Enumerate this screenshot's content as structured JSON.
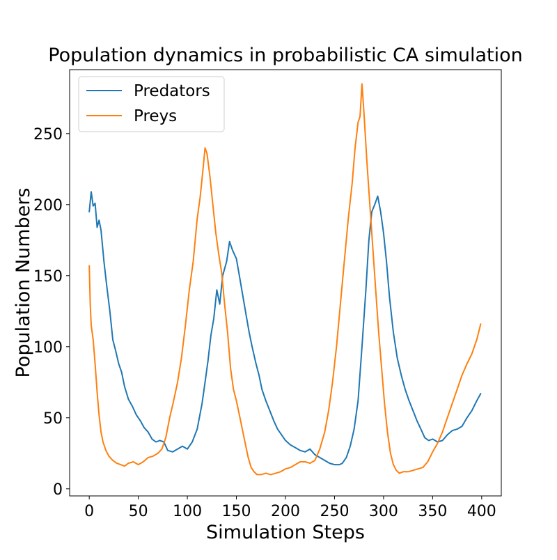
{
  "chart_data": {
    "type": "line",
    "title": "Population dynamics in probabilistic CA simulation",
    "xlabel": "Simulation Steps",
    "ylabel": "Population Numbers",
    "xlim": [
      -20,
      420
    ],
    "ylim": [
      -5,
      295
    ],
    "xticks": [
      0,
      50,
      100,
      150,
      200,
      250,
      300,
      350,
      400
    ],
    "yticks": [
      0,
      50,
      100,
      150,
      200,
      250
    ],
    "grid": false,
    "legend_position": "top-left",
    "series": [
      {
        "name": "Predators",
        "color": "#1f77b4",
        "points": [
          [
            0,
            195
          ],
          [
            2,
            209
          ],
          [
            4,
            199
          ],
          [
            6,
            201
          ],
          [
            8,
            184
          ],
          [
            10,
            189
          ],
          [
            12,
            182
          ],
          [
            15,
            160
          ],
          [
            18,
            142
          ],
          [
            21,
            125
          ],
          [
            24,
            105
          ],
          [
            27,
            97
          ],
          [
            30,
            88
          ],
          [
            33,
            82
          ],
          [
            36,
            72
          ],
          [
            40,
            63
          ],
          [
            44,
            58
          ],
          [
            48,
            52
          ],
          [
            52,
            48
          ],
          [
            56,
            43
          ],
          [
            60,
            40
          ],
          [
            64,
            35
          ],
          [
            68,
            33
          ],
          [
            72,
            34
          ],
          [
            76,
            33
          ],
          [
            80,
            27
          ],
          [
            85,
            26
          ],
          [
            90,
            28
          ],
          [
            95,
            30
          ],
          [
            100,
            28
          ],
          [
            105,
            33
          ],
          [
            110,
            42
          ],
          [
            115,
            60
          ],
          [
            118,
            75
          ],
          [
            121,
            90
          ],
          [
            124,
            108
          ],
          [
            127,
            120
          ],
          [
            130,
            140
          ],
          [
            133,
            130
          ],
          [
            136,
            150
          ],
          [
            140,
            160
          ],
          [
            143,
            174
          ],
          [
            146,
            168
          ],
          [
            150,
            162
          ],
          [
            153,
            150
          ],
          [
            156,
            138
          ],
          [
            160,
            122
          ],
          [
            163,
            110
          ],
          [
            166,
            100
          ],
          [
            170,
            88
          ],
          [
            173,
            80
          ],
          [
            176,
            70
          ],
          [
            180,
            62
          ],
          [
            184,
            55
          ],
          [
            188,
            48
          ],
          [
            192,
            42
          ],
          [
            196,
            38
          ],
          [
            200,
            34
          ],
          [
            205,
            31
          ],
          [
            210,
            29
          ],
          [
            215,
            27
          ],
          [
            220,
            26
          ],
          [
            225,
            28
          ],
          [
            230,
            24
          ],
          [
            235,
            22
          ],
          [
            240,
            20
          ],
          [
            245,
            18
          ],
          [
            250,
            17
          ],
          [
            255,
            17
          ],
          [
            258,
            18
          ],
          [
            262,
            22
          ],
          [
            266,
            30
          ],
          [
            270,
            42
          ],
          [
            274,
            62
          ],
          [
            278,
            100
          ],
          [
            282,
            140
          ],
          [
            285,
            175
          ],
          [
            288,
            195
          ],
          [
            291,
            200
          ],
          [
            294,
            206
          ],
          [
            297,
            195
          ],
          [
            300,
            180
          ],
          [
            303,
            160
          ],
          [
            306,
            135
          ],
          [
            310,
            110
          ],
          [
            314,
            92
          ],
          [
            318,
            80
          ],
          [
            322,
            70
          ],
          [
            326,
            62
          ],
          [
            330,
            55
          ],
          [
            334,
            48
          ],
          [
            338,
            42
          ],
          [
            342,
            36
          ],
          [
            346,
            34
          ],
          [
            350,
            35
          ],
          [
            355,
            33
          ],
          [
            360,
            34
          ],
          [
            365,
            38
          ],
          [
            370,
            41
          ],
          [
            375,
            42
          ],
          [
            380,
            44
          ],
          [
            385,
            50
          ],
          [
            390,
            55
          ],
          [
            395,
            62
          ],
          [
            399,
            67
          ]
        ]
      },
      {
        "name": "Preys",
        "color": "#ff7f0e",
        "points": [
          [
            0,
            157
          ],
          [
            1,
            130
          ],
          [
            2,
            115
          ],
          [
            4,
            105
          ],
          [
            6,
            88
          ],
          [
            8,
            68
          ],
          [
            10,
            52
          ],
          [
            12,
            40
          ],
          [
            14,
            33
          ],
          [
            17,
            27
          ],
          [
            20,
            23
          ],
          [
            24,
            20
          ],
          [
            28,
            18
          ],
          [
            32,
            17
          ],
          [
            36,
            16
          ],
          [
            40,
            18
          ],
          [
            45,
            19
          ],
          [
            50,
            17
          ],
          [
            55,
            19
          ],
          [
            60,
            22
          ],
          [
            65,
            23
          ],
          [
            70,
            25
          ],
          [
            74,
            28
          ],
          [
            78,
            36
          ],
          [
            82,
            50
          ],
          [
            86,
            62
          ],
          [
            90,
            75
          ],
          [
            94,
            92
          ],
          [
            98,
            115
          ],
          [
            102,
            140
          ],
          [
            106,
            160
          ],
          [
            110,
            190
          ],
          [
            113,
            205
          ],
          [
            116,
            225
          ],
          [
            118,
            240
          ],
          [
            120,
            236
          ],
          [
            123,
            220
          ],
          [
            126,
            200
          ],
          [
            129,
            180
          ],
          [
            132,
            165
          ],
          [
            135,
            152
          ],
          [
            138,
            130
          ],
          [
            141,
            110
          ],
          [
            144,
            85
          ],
          [
            147,
            70
          ],
          [
            150,
            62
          ],
          [
            153,
            52
          ],
          [
            156,
            42
          ],
          [
            159,
            32
          ],
          [
            162,
            22
          ],
          [
            165,
            15
          ],
          [
            168,
            12
          ],
          [
            171,
            10
          ],
          [
            175,
            10
          ],
          [
            180,
            11
          ],
          [
            185,
            10
          ],
          [
            190,
            11
          ],
          [
            195,
            12
          ],
          [
            200,
            14
          ],
          [
            205,
            15
          ],
          [
            210,
            17
          ],
          [
            215,
            19
          ],
          [
            220,
            19
          ],
          [
            225,
            18
          ],
          [
            230,
            20
          ],
          [
            235,
            28
          ],
          [
            240,
            40
          ],
          [
            244,
            55
          ],
          [
            248,
            75
          ],
          [
            252,
            100
          ],
          [
            256,
            130
          ],
          [
            260,
            160
          ],
          [
            264,
            190
          ],
          [
            268,
            215
          ],
          [
            271,
            240
          ],
          [
            274,
            258
          ],
          [
            276,
            262
          ],
          [
            278,
            285
          ],
          [
            280,
            265
          ],
          [
            283,
            230
          ],
          [
            286,
            200
          ],
          [
            289,
            170
          ],
          [
            292,
            140
          ],
          [
            295,
            110
          ],
          [
            298,
            85
          ],
          [
            301,
            60
          ],
          [
            304,
            40
          ],
          [
            307,
            25
          ],
          [
            310,
            17
          ],
          [
            313,
            13
          ],
          [
            316,
            11
          ],
          [
            320,
            12
          ],
          [
            325,
            12
          ],
          [
            330,
            13
          ],
          [
            335,
            14
          ],
          [
            340,
            15
          ],
          [
            345,
            19
          ],
          [
            350,
            26
          ],
          [
            355,
            32
          ],
          [
            360,
            40
          ],
          [
            365,
            50
          ],
          [
            370,
            60
          ],
          [
            375,
            70
          ],
          [
            380,
            80
          ],
          [
            385,
            88
          ],
          [
            390,
            95
          ],
          [
            395,
            105
          ],
          [
            399,
            116
          ]
        ]
      }
    ]
  }
}
